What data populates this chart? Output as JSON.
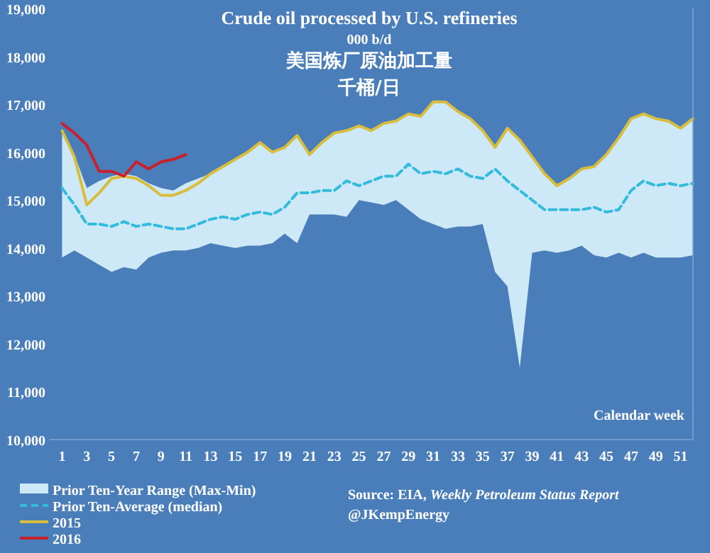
{
  "chart_data": {
    "type": "line",
    "title": "Crude oil processed by U.S. refineries",
    "subtitle": "000 b/d",
    "xlabel": "Calendar week",
    "annotations": [
      "美国炼厂原油加工量",
      "千桶/日",
      "Source: EIA, *Weekly Petroleum Status Report*",
      "@JKempEnergy",
      "Prior Ten-Year Range (Max-Min)"
    ],
    "x": [
      1,
      2,
      3,
      4,
      5,
      6,
      7,
      8,
      9,
      10,
      11,
      12,
      13,
      14,
      15,
      16,
      17,
      18,
      19,
      20,
      21,
      22,
      23,
      24,
      25,
      26,
      27,
      28,
      29,
      30,
      31,
      32,
      33,
      34,
      35,
      36,
      37,
      38,
      39,
      40,
      41,
      42,
      43,
      44,
      45,
      46,
      47,
      48,
      49,
      50,
      51,
      52
    ],
    "xlim": [
      0,
      52
    ],
    "xticks": [
      1,
      3,
      5,
      7,
      9,
      11,
      13,
      15,
      17,
      19,
      21,
      23,
      25,
      27,
      29,
      31,
      33,
      35,
      37,
      39,
      41,
      43,
      45,
      47,
      49,
      51
    ],
    "ylim": [
      10000,
      19000
    ],
    "yticks": [
      {
        "value": 10000,
        "label": "10,000"
      },
      {
        "value": 11000,
        "label": "11,000"
      },
      {
        "value": 12000,
        "label": "12,000"
      },
      {
        "value": 13000,
        "label": "13,000"
      },
      {
        "value": 14000,
        "label": "14,000"
      },
      {
        "value": 15000,
        "label": "15,000"
      },
      {
        "value": 16000,
        "label": "16,000"
      },
      {
        "value": 17000,
        "label": "17,000"
      },
      {
        "value": 18000,
        "label": "18,000"
      },
      {
        "value": 19000,
        "label": "19,000"
      }
    ],
    "legend": "bottom left",
    "series": [
      {
        "name": "Prior Ten-Average (median)",
        "type": "line",
        "line_style": "dashed",
        "color": "#33bbdd",
        "values": [
          15250,
          14900,
          14500,
          14500,
          14450,
          14550,
          14450,
          14500,
          14450,
          14400,
          14400,
          14500,
          14600,
          14650,
          14600,
          14700,
          14750,
          14700,
          14850,
          15150,
          15150,
          15200,
          15200,
          15400,
          15300,
          15400,
          15500,
          15500,
          15750,
          15550,
          15600,
          15550,
          15650,
          15500,
          15450,
          15650,
          15400,
          15200,
          15000,
          14800,
          14800,
          14800,
          14800,
          14850,
          14750,
          14800,
          15200,
          15400,
          15300,
          15350,
          15300,
          15350
        ],
        "upper": [
          16450,
          15950,
          15250,
          15400,
          15500,
          15550,
          15500,
          15350,
          15250,
          15200,
          15350,
          15450,
          15550,
          15700,
          15850,
          16000,
          16200,
          16000,
          16100,
          16350,
          15950,
          16200,
          16400,
          16450,
          16550,
          16450,
          16600,
          16650,
          16800,
          16750,
          17050,
          17050,
          16850,
          16700,
          16450,
          16100,
          16500,
          16250,
          15900,
          15550,
          15300,
          15450,
          15650,
          15700,
          15950,
          16300,
          16700,
          16800,
          16700,
          16650,
          16500,
          16700
        ],
        "lower": [
          13800,
          13950,
          13800,
          13650,
          13500,
          13600,
          13550,
          13800,
          13900,
          13950,
          13950,
          14000,
          14100,
          14050,
          14000,
          14050,
          14050,
          14100,
          14300,
          14100,
          14700,
          14700,
          14700,
          14650,
          15000,
          14950,
          14900,
          15000,
          14800,
          14600,
          14500,
          14400,
          14450,
          14450,
          14500,
          13500,
          13200,
          11500,
          13900,
          13950,
          13900,
          13950,
          14050,
          13850,
          13800,
          13900,
          13800,
          13900,
          13800,
          13800,
          13800,
          13850
        ]
      },
      {
        "name": "2015",
        "type": "line",
        "color": "#d8bd3c",
        "values": [
          16450,
          15900,
          14900,
          15150,
          15450,
          15500,
          15450,
          15300,
          15100,
          15100,
          15200,
          15350,
          15550,
          15700,
          15850,
          16000,
          16200,
          16000,
          16100,
          16350,
          15950,
          16200,
          16400,
          16450,
          16550,
          16450,
          16600,
          16650,
          16800,
          16750,
          17050,
          17050,
          16850,
          16700,
          16450,
          16100,
          16500,
          16250,
          15900,
          15550,
          15300,
          15450,
          15650,
          15700,
          15950,
          16300,
          16700,
          16800,
          16700,
          16650,
          16500,
          16700
        ]
      },
      {
        "name": "2016",
        "type": "line",
        "color": "#c8202c",
        "values": [
          16600,
          16400,
          16150,
          15600,
          15600,
          15500,
          15800,
          15650,
          15800,
          15850,
          15950,
          null,
          null,
          null,
          null,
          null,
          null,
          null,
          null,
          null,
          null,
          null,
          null,
          null,
          null,
          null,
          null,
          null,
          null,
          null,
          null,
          null,
          null,
          null,
          null,
          null,
          null,
          null,
          null,
          null,
          null,
          null,
          null,
          null,
          null,
          null,
          null,
          null,
          null,
          null,
          null,
          null
        ]
      }
    ]
  }
}
